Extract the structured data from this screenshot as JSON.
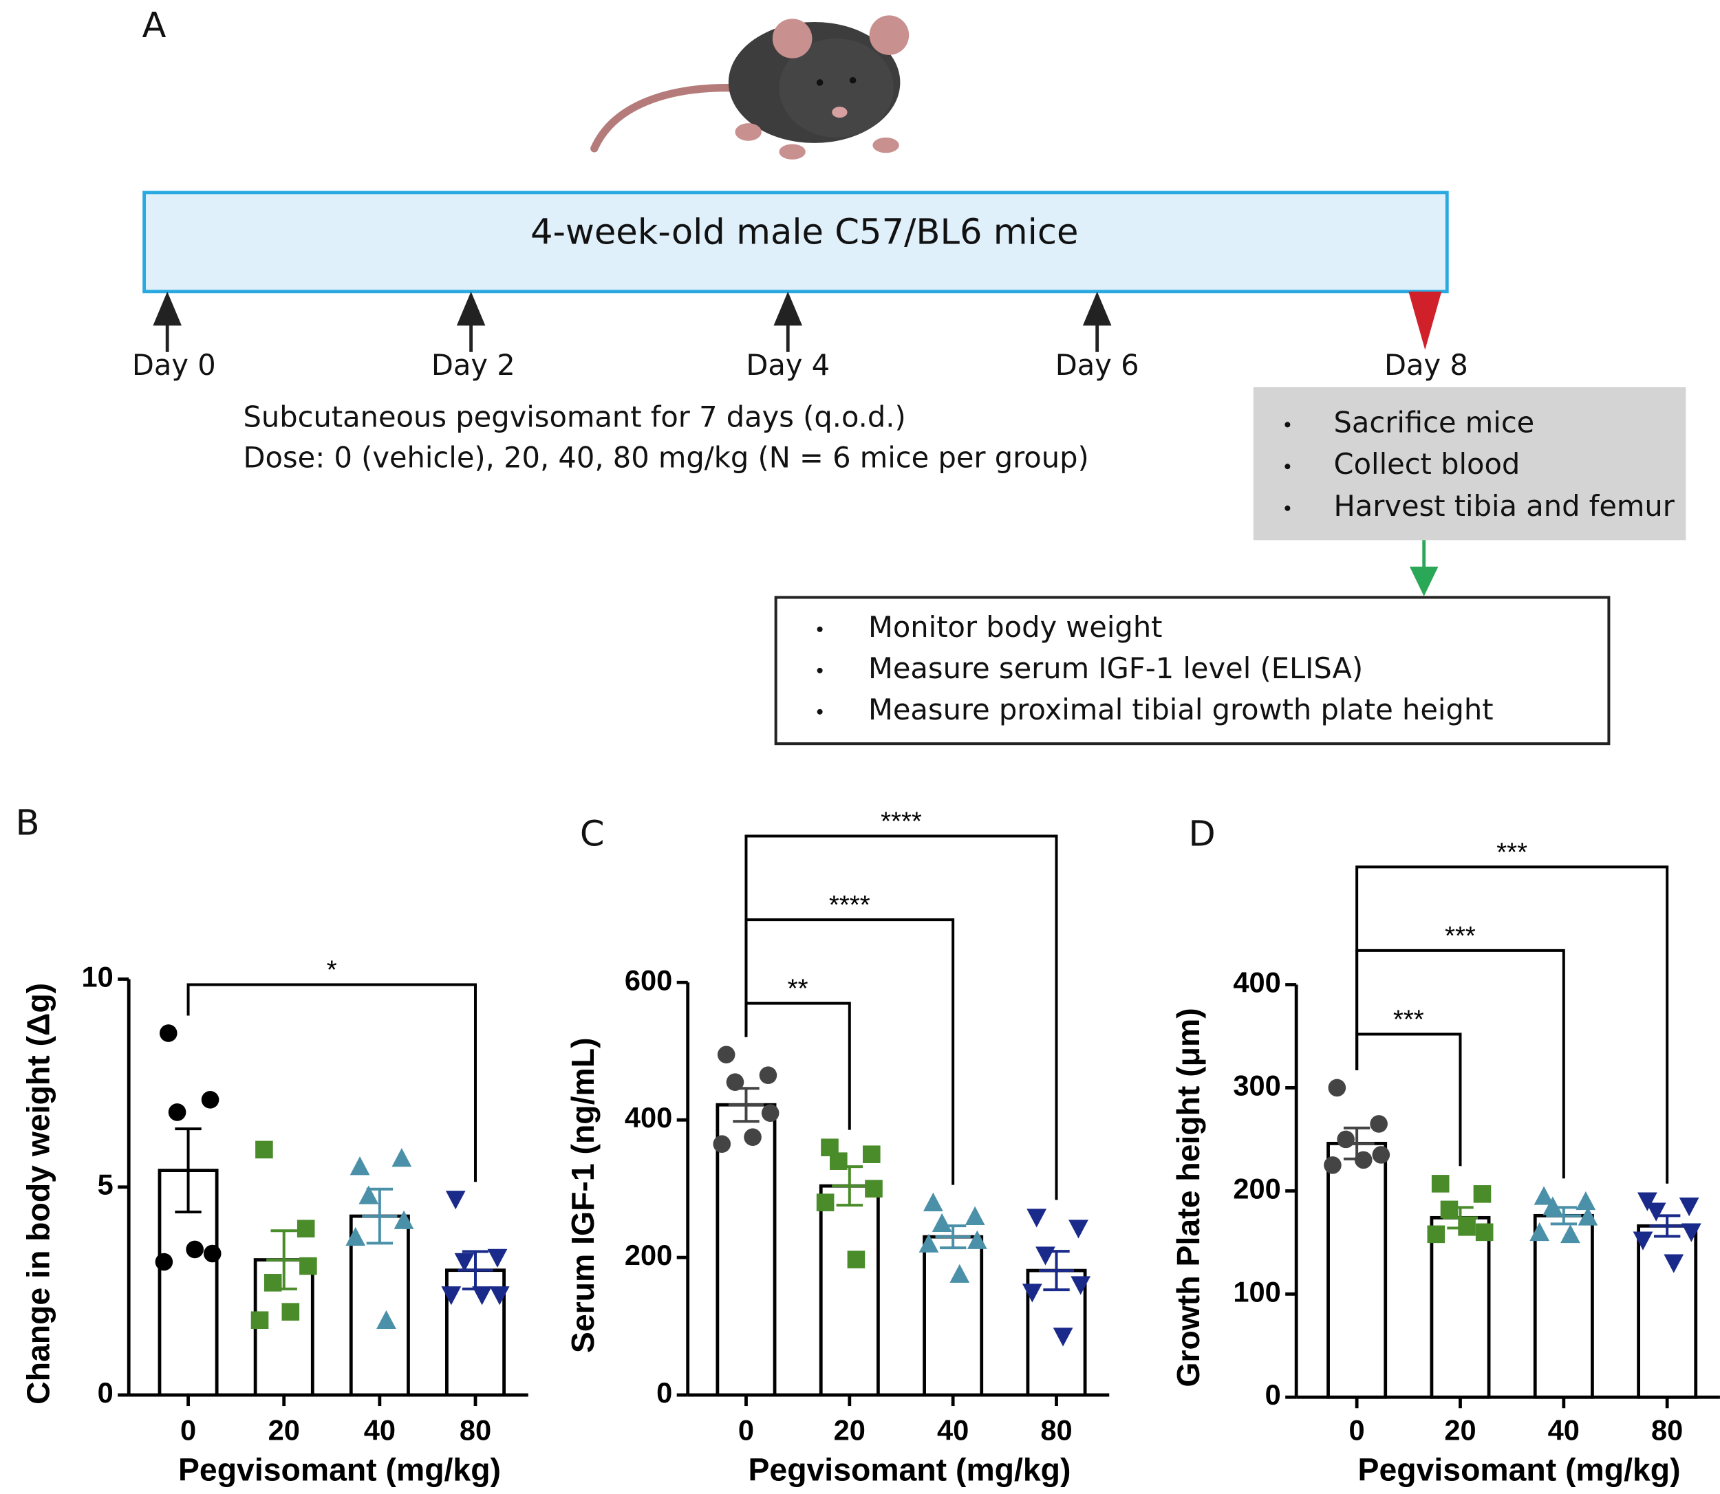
{
  "diagram": {
    "panel": "A",
    "banner": "4-week-old male C57/BL6 mice",
    "days": [
      "Day 0",
      "Day 2",
      "Day 4",
      "Day 6",
      "Day 8"
    ],
    "protocol": [
      "Subcutaneous pegvisomant for 7 days (q.o.d.)",
      "Dose: 0 (vehicle), 20, 40, 80 mg/kg (N = 6 mice per group)"
    ],
    "endpoint": [
      "Sacrifice mice",
      "Collect blood",
      "Harvest tibia and femur"
    ],
    "analyses": [
      "Monitor body weight",
      "Measure serum IGF-1 level (ELISA)",
      "Measure proximal tibial growth plate height"
    ]
  },
  "chart_data": [
    {
      "type": "bar",
      "panel": "B",
      "ylabel": "Change in body weight (Δg)",
      "xlabel": "Pegvisomant (mg/kg)",
      "categories": [
        "0",
        "20",
        "40",
        "80"
      ],
      "values": [
        5.4,
        3.25,
        4.3,
        3.0
      ],
      "errors": [
        1.0,
        0.7,
        0.65,
        0.45
      ],
      "points": [
        [
          8.7,
          7.1,
          6.8,
          3.4,
          3.2,
          3.5
        ],
        [
          5.9,
          4.0,
          2.7,
          3.1,
          1.8,
          2.0
        ],
        [
          5.5,
          5.7,
          4.8,
          4.2,
          3.8,
          1.8
        ],
        [
          4.7,
          3.3,
          3.2,
          2.4,
          2.4,
          2.4
        ]
      ],
      "colors": [
        "#000000",
        "#4a8c2a",
        "#4a90a8",
        "#1a2a8a"
      ],
      "markers": [
        "circle",
        "square",
        "triangle",
        "triangle-down"
      ],
      "ylim": [
        0,
        10
      ],
      "yticks": [
        0,
        5,
        10
      ],
      "significance": [
        {
          "from": "0",
          "to": "80",
          "label": "*"
        }
      ]
    },
    {
      "type": "bar",
      "panel": "C",
      "ylabel": "Serum IGF-1 (ng/mL)",
      "xlabel": "Pegvisomant (mg/kg)",
      "categories": [
        "0",
        "20",
        "40",
        "80"
      ],
      "values": [
        422,
        304,
        230,
        181
      ],
      "errors": [
        24,
        28,
        16,
        28
      ],
      "points": [
        [
          495,
          465,
          455,
          410,
          365,
          375
        ],
        [
          360,
          350,
          340,
          300,
          280,
          197
        ],
        [
          280,
          260,
          250,
          225,
          220,
          176
        ],
        [
          258,
          242,
          203,
          160,
          149,
          85
        ]
      ],
      "colors": [
        "#444444",
        "#4a8c2a",
        "#4a90a8",
        "#1a2a8a"
      ],
      "markers": [
        "circle",
        "square",
        "triangle",
        "triangle-down"
      ],
      "ylim": [
        0,
        600
      ],
      "yticks": [
        0,
        200,
        400,
        600
      ],
      "significance": [
        {
          "from": "0",
          "to": "20",
          "label": "**"
        },
        {
          "from": "0",
          "to": "40",
          "label": "****"
        },
        {
          "from": "0",
          "to": "80",
          "label": "****"
        }
      ]
    },
    {
      "type": "bar",
      "panel": "D",
      "ylabel": "Growth Plate height (μm)",
      "xlabel": "Pegvisomant (mg/kg)",
      "categories": [
        "0",
        "20",
        "40",
        "80"
      ],
      "values": [
        246,
        174,
        176,
        166
      ],
      "errors": [
        15,
        10,
        8,
        10
      ],
      "points": [
        [
          300,
          265,
          250,
          235,
          225,
          230
        ],
        [
          207,
          197,
          182,
          160,
          158,
          165
        ],
        [
          195,
          190,
          185,
          175,
          160,
          158
        ],
        [
          190,
          185,
          180,
          160,
          152,
          130
        ]
      ],
      "colors": [
        "#444444",
        "#4a8c2a",
        "#4a90a8",
        "#1a2a8a"
      ],
      "markers": [
        "circle",
        "square",
        "triangle",
        "triangle-down"
      ],
      "ylim": [
        0,
        400
      ],
      "yticks": [
        0,
        100,
        200,
        300,
        400
      ],
      "significance": [
        {
          "from": "0",
          "to": "20",
          "label": "***"
        },
        {
          "from": "0",
          "to": "40",
          "label": "***"
        },
        {
          "from": "0",
          "to": "80",
          "label": "***"
        }
      ]
    }
  ]
}
